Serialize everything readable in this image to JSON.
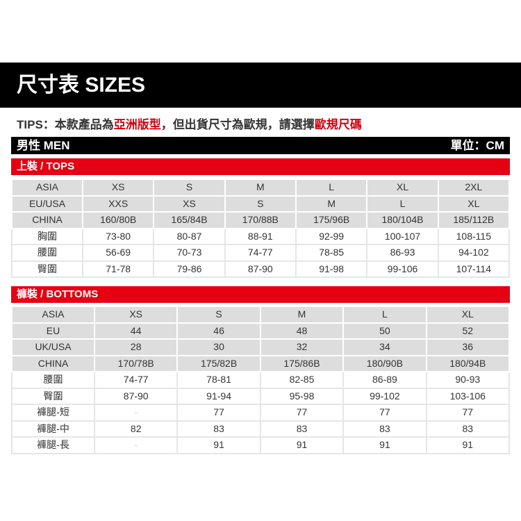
{
  "title": "尺寸表 SIZES",
  "tips": {
    "prefix": "TIPS：本款產品為",
    "hl1": "亞洲版型",
    "mid": "，但出貨尺寸為歐規，請選擇",
    "hl2": "歐規尺碼"
  },
  "section": {
    "label": "男性 MEN",
    "unit": "單位：CM"
  },
  "tops": {
    "label": "上裝 / TOPS",
    "header_rows": 3,
    "rows": [
      [
        "ASIA",
        "XS",
        "S",
        "M",
        "L",
        "XL",
        "2XL"
      ],
      [
        "EU/USA",
        "XXS",
        "XS",
        "S",
        "M",
        "L",
        "XL"
      ],
      [
        "CHINA",
        "160/80B",
        "165/84B",
        "170/88B",
        "175/96B",
        "180/104B",
        "185/112B"
      ],
      [
        "胸圍",
        "73-80",
        "80-87",
        "88-91",
        "92-99",
        "100-107",
        "108-115"
      ],
      [
        "腰圍",
        "56-69",
        "70-73",
        "74-77",
        "78-85",
        "86-93",
        "94-102"
      ],
      [
        "臀圍",
        "71-78",
        "79-86",
        "87-90",
        "91-98",
        "99-106",
        "107-114"
      ]
    ]
  },
  "bottoms": {
    "label": "褲裝 / BOTTOMS",
    "header_rows": 4,
    "rows": [
      [
        "ASIA",
        "XS",
        "S",
        "M",
        "L",
        "XL"
      ],
      [
        "EU",
        "44",
        "46",
        "48",
        "50",
        "52"
      ],
      [
        "UK/USA",
        "28",
        "30",
        "32",
        "34",
        "36"
      ],
      [
        "CHINA",
        "170/78B",
        "175/82B",
        "175/86B",
        "180/90B",
        "180/94B"
      ],
      [
        "腰圍",
        "74-77",
        "78-81",
        "82-85",
        "86-89",
        "90-93"
      ],
      [
        "臀圍",
        "87-90",
        "91-94",
        "95-98",
        "99-102",
        "103-106"
      ],
      [
        "褲腿-短",
        "-",
        "77",
        "77",
        "77",
        "77"
      ],
      [
        "褲腿-中",
        "82",
        "83",
        "83",
        "83",
        "83"
      ],
      [
        "褲腿-長",
        "-",
        "91",
        "91",
        "91",
        "91"
      ]
    ]
  },
  "colors": {
    "accent": "#e60012",
    "header_bg": "#000000",
    "header_row_bg": "#dddddd"
  }
}
